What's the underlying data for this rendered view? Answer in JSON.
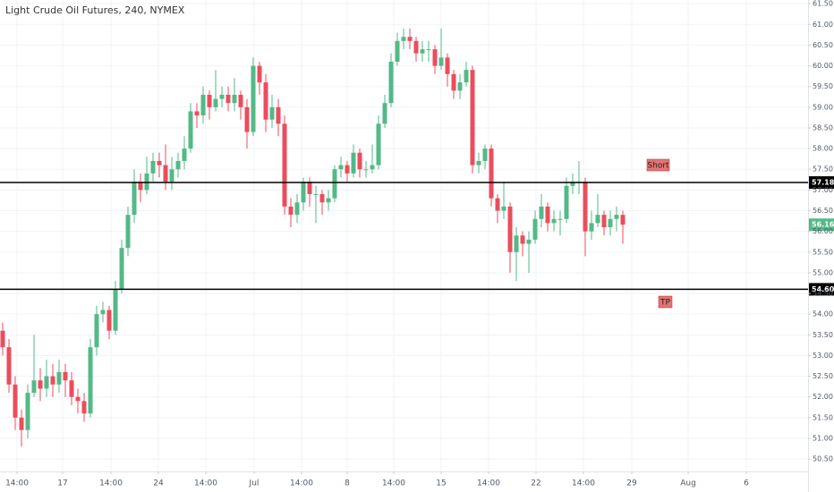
{
  "chart_data": {
    "type": "candlestick",
    "title": "Light Crude Oil Futures, 240, NYMEX",
    "up_color": "#53b987",
    "down_color": "#eb4d5c",
    "grid": true,
    "ylim": [
      50.2,
      61.59
    ],
    "xlim": [
      -0.43,
      128.57
    ],
    "yticks": [
      {
        "value": 50.5,
        "label": "50.50"
      },
      {
        "value": 51,
        "label": "51.00"
      },
      {
        "value": 51.5,
        "label": "51.50"
      },
      {
        "value": 52,
        "label": "52.00"
      },
      {
        "value": 52.5,
        "label": "52.50"
      },
      {
        "value": 53,
        "label": "53.00"
      },
      {
        "value": 53.5,
        "label": "53.50"
      },
      {
        "value": 54,
        "label": "54.00"
      },
      {
        "value": 54.5,
        "label": "54.50"
      },
      {
        "value": 55,
        "label": "55.00"
      },
      {
        "value": 55.5,
        "label": "55.50"
      },
      {
        "value": 56,
        "label": "56.00"
      },
      {
        "value": 56.5,
        "label": "56.50"
      },
      {
        "value": 57,
        "label": "57.00"
      },
      {
        "value": 57.5,
        "label": "57.50"
      },
      {
        "value": 58,
        "label": "58.00"
      },
      {
        "value": 58.5,
        "label": "58.50"
      },
      {
        "value": 59,
        "label": "59.00"
      },
      {
        "value": 59.5,
        "label": "59.50"
      },
      {
        "value": 60,
        "label": "60.00"
      },
      {
        "value": 60.5,
        "label": "60.50"
      },
      {
        "value": 61,
        "label": "61.00"
      },
      {
        "value": 61.5,
        "label": "61.50"
      }
    ],
    "xticks": [
      {
        "value": 2.29,
        "label": "14:00"
      },
      {
        "value": 9.57,
        "label": "17"
      },
      {
        "value": 17.29,
        "label": "14:00"
      },
      {
        "value": 24.86,
        "label": "24"
      },
      {
        "value": 32.43,
        "label": "14:00"
      },
      {
        "value": 40.14,
        "label": "Jul"
      },
      {
        "value": 47.71,
        "label": "14:00"
      },
      {
        "value": 55,
        "label": "8"
      },
      {
        "value": 62.43,
        "label": "14:00"
      },
      {
        "value": 70,
        "label": "15"
      },
      {
        "value": 77.57,
        "label": "14:00"
      },
      {
        "value": 85.14,
        "label": "22"
      },
      {
        "value": 92.71,
        "label": "14:00"
      },
      {
        "value": 100.43,
        "label": "29"
      },
      {
        "value": 109.43,
        "label": "Aug"
      },
      {
        "value": 118.71,
        "label": "6"
      }
    ],
    "open": [
      53.6,
      53.2,
      52.3,
      51.5,
      51.2,
      52.1,
      52.4,
      52.2,
      52.5,
      52.3,
      52.6,
      52.4,
      52.0,
      51.9,
      51.6,
      53.2,
      54.0,
      54.1,
      53.6,
      54.6,
      55.6,
      56.4,
      57.2,
      57.0,
      57.4,
      57.7,
      57.6,
      57.2,
      57.5,
      57.7,
      58.0,
      58.9,
      58.8,
      59.3,
      59.0,
      59.2,
      59.3,
      59.1,
      59.3,
      59.0,
      58.4,
      60.0,
      59.6,
      58.7,
      59.0,
      58.6,
      56.6,
      56.4,
      56.7,
      57.2,
      56.9,
      56.9,
      56.7,
      56.8,
      57.5,
      57.6,
      57.4,
      57.9,
      57.5,
      57.5,
      57.6,
      58.6,
      59.1,
      60.1,
      60.6,
      60.7,
      60.6,
      60.3,
      60.4,
      60.4,
      60.0,
      60.2,
      59.8,
      59.4,
      59.6,
      59.9,
      57.6,
      57.7,
      58.0,
      56.8,
      56.5,
      56.6,
      55.5,
      55.9,
      55.7,
      55.8,
      56.3,
      56.6,
      56.2,
      56.3,
      56.3,
      57.1,
      57.2,
      57.2,
      56.0,
      56.2,
      56.4,
      56.1,
      56.3,
      56.4
    ],
    "high": [
      53.8,
      53.4,
      52.5,
      51.7,
      52.3,
      53.5,
      52.7,
      52.9,
      52.8,
      52.9,
      52.8,
      52.6,
      52.2,
      52.1,
      53.4,
      54.2,
      54.3,
      54.2,
      54.8,
      55.8,
      56.6,
      57.5,
      57.4,
      57.8,
      57.9,
      57.9,
      58.1,
      57.8,
      57.9,
      58.3,
      59.1,
      59.1,
      59.5,
      59.4,
      59.9,
      59.5,
      59.5,
      59.7,
      59.4,
      59.2,
      60.2,
      60.1,
      59.8,
      59.3,
      59.2,
      58.8,
      56.8,
      56.9,
      57.3,
      57.3,
      57.1,
      57.0,
      57.0,
      57.6,
      57.8,
      57.7,
      58.1,
      58.0,
      57.7,
      58.1,
      58.8,
      59.3,
      60.3,
      60.8,
      60.9,
      60.9,
      60.7,
      60.6,
      60.6,
      60.5,
      60.9,
      60.3,
      59.9,
      59.8,
      60.1,
      60.0,
      57.9,
      58.1,
      58.1,
      56.9,
      57.2,
      56.7,
      56.1,
      56.0,
      56.0,
      56.5,
      56.9,
      56.7,
      56.5,
      56.5,
      57.3,
      57.4,
      57.7,
      57.3,
      56.5,
      56.9,
      56.5,
      56.5,
      56.6,
      56.5
    ],
    "low": [
      53.0,
      52.1,
      51.2,
      50.8,
      51.0,
      52.0,
      51.9,
      52.0,
      52.0,
      52.1,
      52.0,
      51.8,
      51.6,
      51.4,
      51.5,
      53.0,
      53.8,
      53.4,
      53.5,
      54.5,
      55.4,
      56.2,
      56.7,
      56.9,
      57.2,
      57.3,
      57.0,
      57.0,
      57.3,
      57.5,
      57.9,
      58.5,
      58.6,
      58.7,
      58.9,
      59.0,
      58.9,
      58.9,
      58.7,
      58.0,
      58.3,
      59.3,
      58.4,
      58.5,
      58.3,
      56.4,
      56.1,
      56.2,
      56.5,
      56.6,
      56.2,
      56.4,
      56.5,
      56.7,
      57.3,
      57.2,
      57.3,
      57.3,
      57.3,
      57.4,
      57.5,
      58.5,
      59.0,
      60.0,
      60.4,
      60.4,
      60.1,
      60.1,
      60.1,
      59.8,
      59.9,
      59.5,
      59.2,
      59.2,
      59.5,
      57.4,
      57.4,
      57.5,
      56.6,
      56.2,
      56.3,
      55.0,
      54.8,
      55.4,
      55.0,
      55.7,
      56.1,
      56.0,
      56.0,
      55.9,
      56.2,
      56.9,
      56.9,
      55.4,
      55.8,
      56.1,
      55.9,
      55.9,
      56.0,
      55.7
    ],
    "close": [
      53.2,
      52.3,
      51.5,
      51.2,
      52.1,
      52.4,
      52.2,
      52.5,
      52.3,
      52.6,
      52.4,
      52.0,
      51.9,
      51.6,
      53.2,
      54.0,
      54.1,
      53.6,
      54.6,
      55.6,
      56.4,
      57.2,
      57.0,
      57.4,
      57.7,
      57.6,
      57.2,
      57.5,
      57.7,
      58.0,
      58.9,
      58.8,
      59.3,
      59.0,
      59.2,
      59.3,
      59.1,
      59.3,
      59.0,
      58.4,
      60.0,
      59.6,
      58.7,
      59.0,
      58.6,
      56.6,
      56.4,
      56.7,
      57.2,
      56.9,
      56.9,
      56.7,
      56.8,
      57.5,
      57.6,
      57.4,
      57.9,
      57.5,
      57.5,
      57.6,
      58.6,
      59.1,
      60.1,
      60.6,
      60.7,
      60.6,
      60.3,
      60.4,
      60.4,
      60.0,
      60.2,
      59.8,
      59.4,
      59.6,
      59.9,
      57.6,
      57.7,
      58.0,
      56.8,
      56.5,
      56.6,
      55.5,
      55.9,
      55.7,
      55.8,
      56.3,
      56.6,
      56.2,
      56.3,
      56.3,
      57.1,
      57.2,
      57.2,
      56.0,
      56.2,
      56.4,
      56.1,
      56.3,
      56.4,
      56.16
    ],
    "last_price_label": "56.16",
    "levels": [
      {
        "value": 57.18,
        "label": "57.18"
      },
      {
        "value": 54.6,
        "label": "54.60"
      }
    ],
    "annotations": [
      "Short",
      "TP"
    ]
  }
}
